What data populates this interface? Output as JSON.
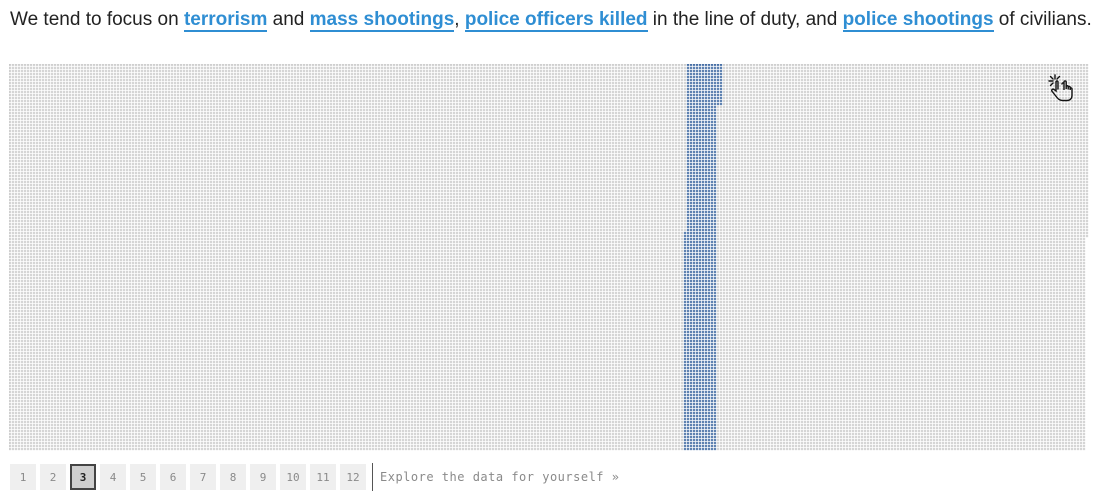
{
  "intro": {
    "prefix": "We tend to focus on ",
    "link_terrorism": "terrorism",
    "and_1": " and ",
    "link_mass_shootings": "mass shootings",
    "comma": ", ",
    "link_police_officers_killed": "police officers killed",
    "middle": " in the line of duty, and ",
    "link_police_shootings": "police shootings",
    "suffix": " of civilians."
  },
  "grid": {
    "colors": {
      "base_dot": "#c8c8c8",
      "highlight_dot": "#2e5b99",
      "link": "#2f8ed3"
    },
    "interaction_icon": "pointing-hand-click-icon"
  },
  "pagination": {
    "pages": [
      "1",
      "2",
      "3",
      "4",
      "5",
      "6",
      "7",
      "8",
      "9",
      "10",
      "11",
      "12"
    ],
    "active_page": "3",
    "explore_label": "Explore the data for yourself »"
  }
}
